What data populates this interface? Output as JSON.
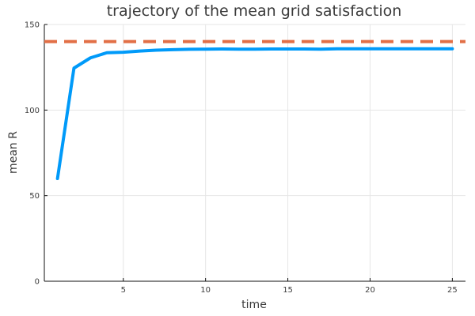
{
  "chart_data": {
    "type": "line",
    "title": "trajectory of the mean grid satisfaction",
    "xlabel": "time",
    "ylabel": "mean R",
    "xlim": [
      0.2,
      25.8
    ],
    "ylim": [
      0,
      150
    ],
    "xticks": [
      5,
      10,
      15,
      20,
      25
    ],
    "yticks": [
      0,
      50,
      100,
      150
    ],
    "grid": true,
    "legend": "none",
    "series": [
      {
        "style": "solid",
        "color": "#009af9",
        "x": [
          1,
          2,
          3,
          4,
          5,
          6,
          7,
          8,
          9,
          10,
          11,
          12,
          13,
          14,
          15,
          16,
          17,
          18,
          19,
          20,
          21,
          22,
          23,
          24,
          25
        ],
        "y": [
          60,
          124.5,
          130.5,
          133.5,
          133.8,
          134.5,
          135,
          135.3,
          135.5,
          135.6,
          135.7,
          135.6,
          135.6,
          135.7,
          135.7,
          135.7,
          135.6,
          135.8,
          135.8,
          135.8,
          135.8,
          135.8,
          135.8,
          135.8,
          135.8
        ]
      },
      {
        "style": "dashed",
        "color": "#e26f46",
        "x": [
          0.2,
          25.8
        ],
        "y": [
          140,
          140
        ]
      }
    ]
  }
}
